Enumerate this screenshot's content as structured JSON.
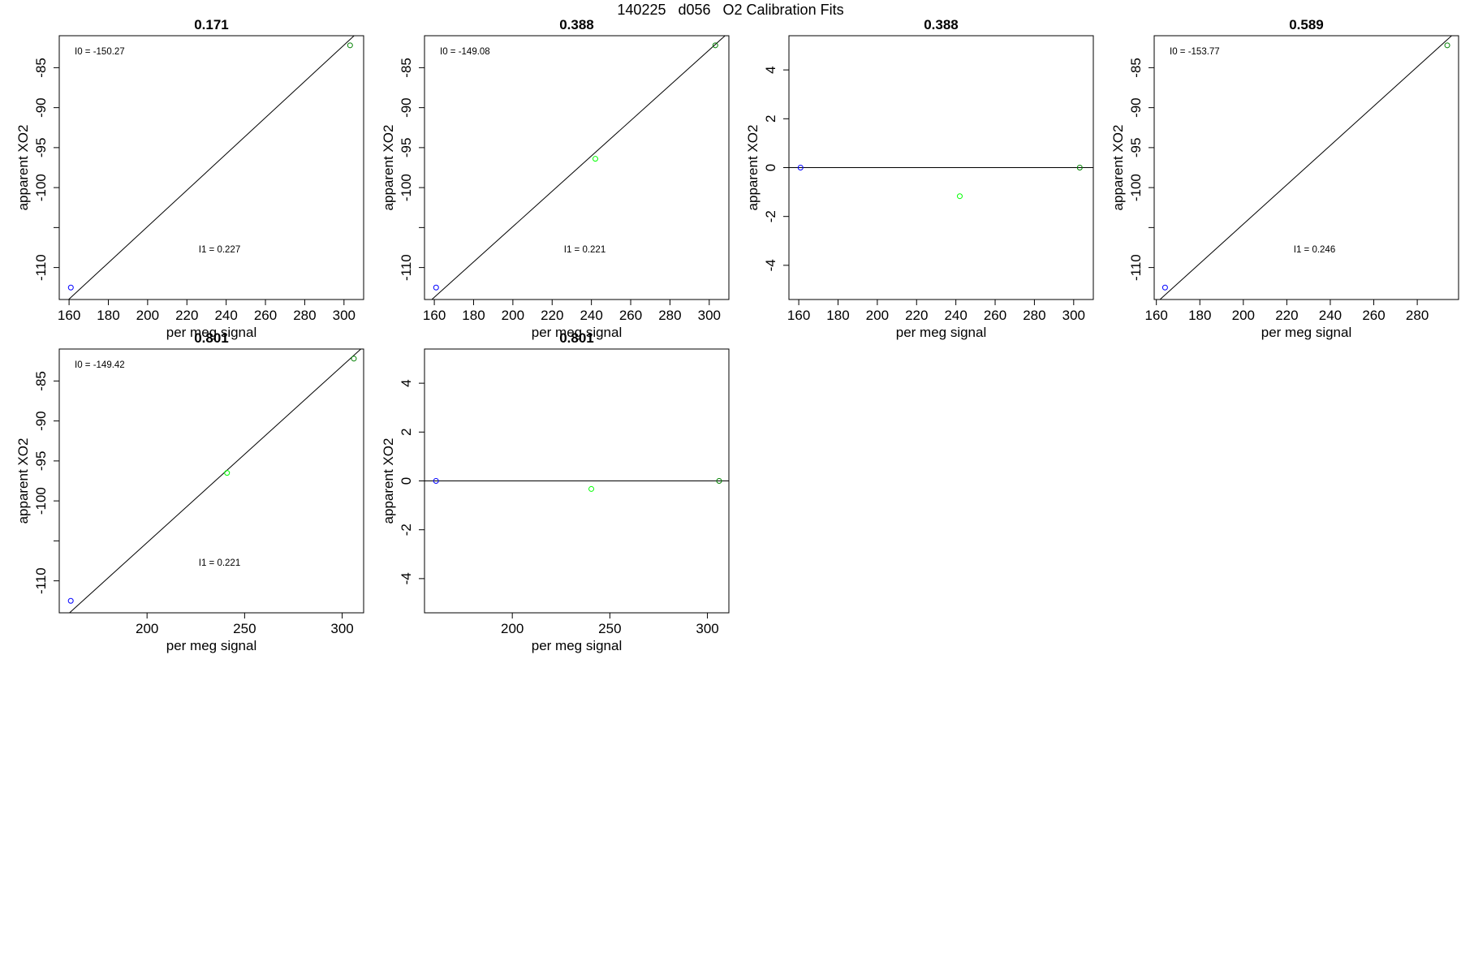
{
  "page_title": "140225   d056   O2 Calibration Fits",
  "colors": {
    "frame": "#000000",
    "fit_line": "#000000",
    "point_low": "#0000ff",
    "point_mid": "#00ff00",
    "point_high": "#008000"
  },
  "chart_data": [
    {
      "type": "scatter",
      "title": "0.171",
      "xlabel": "per meg signal",
      "ylabel": "apparent XO2",
      "xlim": [
        155,
        310
      ],
      "ylim": [
        -114,
        -81
      ],
      "xticks": [
        160,
        180,
        200,
        220,
        240,
        260,
        280,
        300
      ],
      "yticks": [
        -110,
        -100,
        -95,
        -90,
        -85
      ],
      "yticks_unlabeled": [
        -105
      ],
      "points": [
        {
          "x": 160.9,
          "y": -112.5,
          "color": "#0000ff"
        },
        {
          "x": 303.1,
          "y": -82.2,
          "color": "#008000"
        }
      ],
      "fit_line": {
        "intercept": -150.27,
        "slope": 0.227
      },
      "annotations": [
        {
          "label": "I0 =",
          "value": "-150.27"
        },
        {
          "label": "I1 =",
          "value": "0.227"
        }
      ]
    },
    {
      "type": "scatter",
      "title": "0.388",
      "xlabel": "per meg signal",
      "ylabel": "apparent XO2",
      "xlim": [
        155,
        310
      ],
      "ylim": [
        -114,
        -81
      ],
      "xticks": [
        160,
        180,
        200,
        220,
        240,
        260,
        280,
        300
      ],
      "yticks": [
        -110,
        -100,
        -95,
        -90,
        -85
      ],
      "yticks_unlabeled": [
        -105
      ],
      "points": [
        {
          "x": 160.9,
          "y": -112.5,
          "color": "#0000ff"
        },
        {
          "x": 242.0,
          "y": -96.4,
          "color": "#00ff00"
        },
        {
          "x": 303.1,
          "y": -82.2,
          "color": "#008000"
        }
      ],
      "fit_line": {
        "intercept": -149.08,
        "slope": 0.221
      },
      "annotations": [
        {
          "label": "I0 =",
          "value": "-149.08"
        },
        {
          "label": "I1 =",
          "value": "0.221"
        }
      ]
    },
    {
      "type": "scatter",
      "title": "0.388",
      "xlabel": "per meg signal",
      "ylabel": "apparent XO2",
      "xlim": [
        155,
        310
      ],
      "ylim": [
        -5.4,
        5.4
      ],
      "xticks": [
        160,
        180,
        200,
        220,
        240,
        260,
        280,
        300
      ],
      "yticks": [
        -4,
        -2,
        0,
        2,
        4
      ],
      "points": [
        {
          "x": 160.9,
          "y": 0.0,
          "color": "#0000ff"
        },
        {
          "x": 242.0,
          "y": -1.17,
          "color": "#00ff00"
        },
        {
          "x": 303.1,
          "y": 0.0,
          "color": "#008000"
        }
      ],
      "fit_line": {
        "intercept": 0,
        "slope": 0
      },
      "annotations": []
    },
    {
      "type": "scatter",
      "title": "0.589",
      "xlabel": "per meg signal",
      "ylabel": "apparent XO2",
      "xlim": [
        159,
        299
      ],
      "ylim": [
        -114,
        -81
      ],
      "xticks": [
        160,
        180,
        200,
        220,
        240,
        260,
        280
      ],
      "yticks": [
        -110,
        -100,
        -95,
        -90,
        -85
      ],
      "yticks_unlabeled": [
        -105
      ],
      "points": [
        {
          "x": 164.0,
          "y": -112.5,
          "color": "#0000ff"
        },
        {
          "x": 293.8,
          "y": -82.2,
          "color": "#008000"
        }
      ],
      "fit_line": {
        "intercept": -153.77,
        "slope": 0.246
      },
      "annotations": [
        {
          "label": "I0 =",
          "value": "-153.77"
        },
        {
          "label": "I1 =",
          "value": "0.246"
        }
      ]
    },
    {
      "type": "scatter",
      "title": "0.801",
      "xlabel": "per meg signal",
      "ylabel": "apparent XO2",
      "xlim": [
        155,
        311
      ],
      "ylim": [
        -114,
        -81
      ],
      "xticks": [
        200,
        250,
        300
      ],
      "yticks": [
        -110,
        -100,
        -95,
        -90,
        -85
      ],
      "yticks_unlabeled": [
        -105
      ],
      "points": [
        {
          "x": 160.9,
          "y": -112.5,
          "color": "#0000ff"
        },
        {
          "x": 241.0,
          "y": -96.5,
          "color": "#00ff00"
        },
        {
          "x": 306.0,
          "y": -82.2,
          "color": "#008000"
        }
      ],
      "fit_line": {
        "intercept": -149.42,
        "slope": 0.221
      },
      "annotations": [
        {
          "label": "I0 =",
          "value": "-149.42"
        },
        {
          "label": "I1 =",
          "value": "0.221"
        }
      ]
    },
    {
      "type": "scatter",
      "title": "0.801",
      "xlabel": "per meg signal",
      "ylabel": "apparent XO2",
      "xlim": [
        155,
        311
      ],
      "ylim": [
        -5.4,
        5.4
      ],
      "xticks": [
        200,
        250,
        300
      ],
      "yticks": [
        -4,
        -2,
        0,
        2,
        4
      ],
      "points": [
        {
          "x": 160.9,
          "y": 0.0,
          "color": "#0000ff"
        },
        {
          "x": 240.5,
          "y": -0.33,
          "color": "#00ff00"
        },
        {
          "x": 306.0,
          "y": 0.0,
          "color": "#008000"
        }
      ],
      "fit_line": {
        "intercept": 0,
        "slope": 0
      },
      "annotations": []
    }
  ]
}
